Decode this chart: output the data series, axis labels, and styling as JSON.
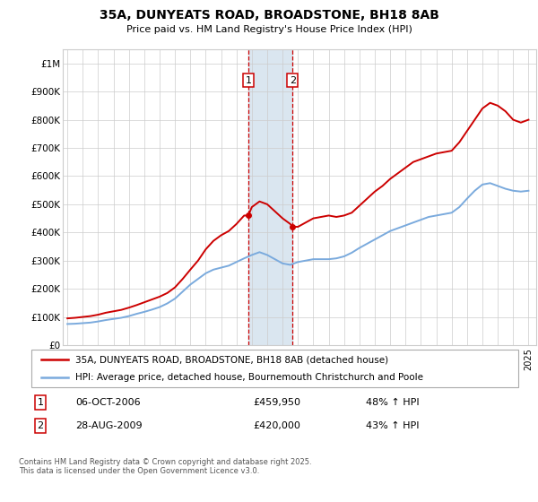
{
  "title": "35A, DUNYEATS ROAD, BROADSTONE, BH18 8AB",
  "subtitle": "Price paid vs. HM Land Registry's House Price Index (HPI)",
  "ylabel_ticks": [
    "£0",
    "£100K",
    "£200K",
    "£300K",
    "£400K",
    "£500K",
    "£600K",
    "£700K",
    "£800K",
    "£900K",
    "£1M"
  ],
  "ylim": [
    0,
    1050000
  ],
  "xlim_start": 1994.7,
  "xlim_end": 2025.5,
  "red_color": "#cc0000",
  "blue_color": "#7aaadd",
  "shading_color": "#dae6f0",
  "grid_color": "#cccccc",
  "bg_color": "#ffffff",
  "marker1_x": 2006.77,
  "marker2_x": 2009.65,
  "marker1_y": 459950,
  "marker2_y": 420000,
  "legend_label_red": "35A, DUNYEATS ROAD, BROADSTONE, BH18 8AB (detached house)",
  "legend_label_blue": "HPI: Average price, detached house, Bournemouth Christchurch and Poole",
  "table_rows": [
    {
      "num": "1",
      "date": "06-OCT-2006",
      "price": "£459,950",
      "hpi": "48% ↑ HPI"
    },
    {
      "num": "2",
      "date": "28-AUG-2009",
      "price": "£420,000",
      "hpi": "43% ↑ HPI"
    }
  ],
  "footer": "Contains HM Land Registry data © Crown copyright and database right 2025.\nThis data is licensed under the Open Government Licence v3.0.",
  "red_hpi_data": [
    [
      1995.0,
      95000
    ],
    [
      1995.5,
      97000
    ],
    [
      1996.0,
      100000
    ],
    [
      1996.5,
      103000
    ],
    [
      1997.0,
      108000
    ],
    [
      1997.5,
      115000
    ],
    [
      1998.0,
      120000
    ],
    [
      1998.5,
      125000
    ],
    [
      1999.0,
      133000
    ],
    [
      1999.5,
      142000
    ],
    [
      2000.0,
      152000
    ],
    [
      2000.5,
      162000
    ],
    [
      2001.0,
      172000
    ],
    [
      2001.5,
      185000
    ],
    [
      2002.0,
      205000
    ],
    [
      2002.5,
      235000
    ],
    [
      2003.0,
      268000
    ],
    [
      2003.5,
      300000
    ],
    [
      2004.0,
      340000
    ],
    [
      2004.5,
      370000
    ],
    [
      2005.0,
      390000
    ],
    [
      2005.5,
      405000
    ],
    [
      2006.0,
      430000
    ],
    [
      2006.5,
      460000
    ],
    [
      2006.77,
      459950
    ],
    [
      2007.0,
      490000
    ],
    [
      2007.5,
      510000
    ],
    [
      2008.0,
      500000
    ],
    [
      2008.5,
      475000
    ],
    [
      2009.0,
      450000
    ],
    [
      2009.5,
      430000
    ],
    [
      2009.65,
      420000
    ],
    [
      2010.0,
      420000
    ],
    [
      2010.5,
      435000
    ],
    [
      2011.0,
      450000
    ],
    [
      2011.5,
      455000
    ],
    [
      2012.0,
      460000
    ],
    [
      2012.5,
      455000
    ],
    [
      2013.0,
      460000
    ],
    [
      2013.5,
      470000
    ],
    [
      2014.0,
      495000
    ],
    [
      2014.5,
      520000
    ],
    [
      2015.0,
      545000
    ],
    [
      2015.5,
      565000
    ],
    [
      2016.0,
      590000
    ],
    [
      2016.5,
      610000
    ],
    [
      2017.0,
      630000
    ],
    [
      2017.5,
      650000
    ],
    [
      2018.0,
      660000
    ],
    [
      2018.5,
      670000
    ],
    [
      2019.0,
      680000
    ],
    [
      2019.5,
      685000
    ],
    [
      2020.0,
      690000
    ],
    [
      2020.5,
      720000
    ],
    [
      2021.0,
      760000
    ],
    [
      2021.5,
      800000
    ],
    [
      2022.0,
      840000
    ],
    [
      2022.5,
      860000
    ],
    [
      2023.0,
      850000
    ],
    [
      2023.5,
      830000
    ],
    [
      2024.0,
      800000
    ],
    [
      2024.5,
      790000
    ],
    [
      2025.0,
      800000
    ]
  ],
  "blue_hpi_data": [
    [
      1995.0,
      75000
    ],
    [
      1995.5,
      76000
    ],
    [
      1996.0,
      78000
    ],
    [
      1996.5,
      80000
    ],
    [
      1997.0,
      84000
    ],
    [
      1997.5,
      89000
    ],
    [
      1998.0,
      93000
    ],
    [
      1998.5,
      97000
    ],
    [
      1999.0,
      103000
    ],
    [
      1999.5,
      111000
    ],
    [
      2000.0,
      118000
    ],
    [
      2000.5,
      126000
    ],
    [
      2001.0,
      135000
    ],
    [
      2001.5,
      148000
    ],
    [
      2002.0,
      165000
    ],
    [
      2002.5,
      190000
    ],
    [
      2003.0,
      215000
    ],
    [
      2003.5,
      235000
    ],
    [
      2004.0,
      255000
    ],
    [
      2004.5,
      268000
    ],
    [
      2005.0,
      275000
    ],
    [
      2005.5,
      282000
    ],
    [
      2006.0,
      295000
    ],
    [
      2006.5,
      308000
    ],
    [
      2007.0,
      320000
    ],
    [
      2007.5,
      330000
    ],
    [
      2008.0,
      320000
    ],
    [
      2008.5,
      305000
    ],
    [
      2009.0,
      290000
    ],
    [
      2009.5,
      285000
    ],
    [
      2010.0,
      295000
    ],
    [
      2010.5,
      300000
    ],
    [
      2011.0,
      305000
    ],
    [
      2011.5,
      305000
    ],
    [
      2012.0,
      305000
    ],
    [
      2012.5,
      308000
    ],
    [
      2013.0,
      315000
    ],
    [
      2013.5,
      328000
    ],
    [
      2014.0,
      345000
    ],
    [
      2014.5,
      360000
    ],
    [
      2015.0,
      375000
    ],
    [
      2015.5,
      390000
    ],
    [
      2016.0,
      405000
    ],
    [
      2016.5,
      415000
    ],
    [
      2017.0,
      425000
    ],
    [
      2017.5,
      435000
    ],
    [
      2018.0,
      445000
    ],
    [
      2018.5,
      455000
    ],
    [
      2019.0,
      460000
    ],
    [
      2019.5,
      465000
    ],
    [
      2020.0,
      470000
    ],
    [
      2020.5,
      490000
    ],
    [
      2021.0,
      520000
    ],
    [
      2021.5,
      548000
    ],
    [
      2022.0,
      570000
    ],
    [
      2022.5,
      575000
    ],
    [
      2023.0,
      565000
    ],
    [
      2023.5,
      555000
    ],
    [
      2024.0,
      548000
    ],
    [
      2024.5,
      545000
    ],
    [
      2025.0,
      548000
    ]
  ]
}
